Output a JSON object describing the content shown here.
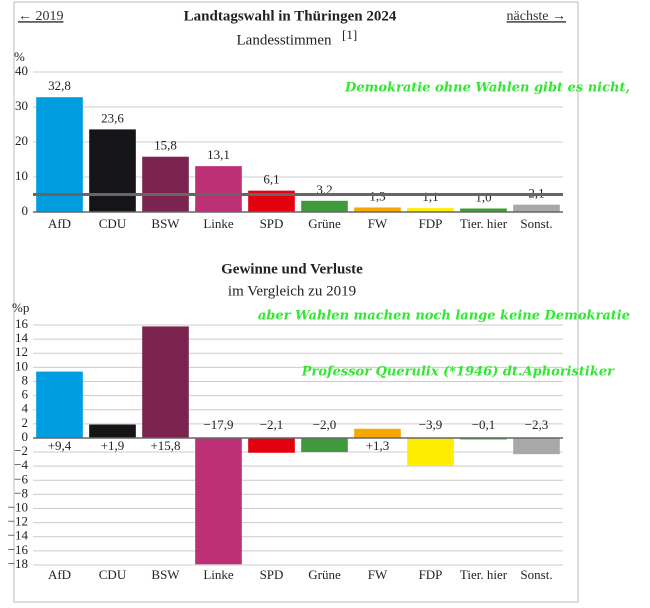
{
  "chart_data": [
    {
      "type": "bar",
      "title": "Landtagswahl in Thüringen 2024",
      "subtitle": "Landesstimmen",
      "subtitle_note": "[1]",
      "navigation": [
        "← 2019",
        "nächste →"
      ],
      "ylabel": "%",
      "categories": [
        "AfD",
        "CDU",
        "BSW",
        "Linke",
        "SPD",
        "Grüne",
        "FW",
        "FDP",
        "Tier. hier",
        "Sonst."
      ],
      "values": [
        32.8,
        23.6,
        15.8,
        13.1,
        6.1,
        3.2,
        1.3,
        1.1,
        1.0,
        2.1
      ],
      "value_labels": [
        "32,8",
        "23,6",
        "15,8",
        "13,1",
        "6,1",
        "3,2",
        "1,3",
        "1,1",
        "1,0",
        "2,1"
      ],
      "colors": [
        "#009ee0",
        "#151518",
        "#7b2450",
        "#be3075",
        "#e3000f",
        "#409a3c",
        "#f7a800",
        "#ffed00",
        "#3f9c35",
        "#a8a8a8"
      ],
      "ylim": [
        0,
        40
      ],
      "yticks": [
        0,
        10,
        20,
        30,
        40
      ],
      "grid": true,
      "threshold": 5,
      "annotations": [
        "Demokratie ohne Wahlen gibt es nicht,"
      ]
    },
    {
      "type": "bar",
      "title": "Gewinne und Verluste",
      "subtitle": "im Vergleich zu 2019",
      "ylabel": "%p",
      "categories": [
        "AfD",
        "CDU",
        "BSW",
        "Linke",
        "SPD",
        "Grüne",
        "FW",
        "FDP",
        "Tier. hier",
        "Sonst."
      ],
      "values": [
        9.4,
        1.9,
        15.8,
        -17.9,
        -2.1,
        -2.0,
        1.3,
        -3.9,
        -0.1,
        -2.3
      ],
      "value_labels": [
        "+9,4",
        "+1,9",
        "+15,8",
        "−17,9",
        "−2,1",
        "−2,0",
        "+1,3",
        "−3,9",
        "−0,1",
        "−2,3"
      ],
      "colors": [
        "#009ee0",
        "#151518",
        "#7b2450",
        "#be3075",
        "#e3000f",
        "#409a3c",
        "#f7a800",
        "#ffed00",
        "#3f9c35",
        "#a8a8a8"
      ],
      "ylim": [
        -18,
        16
      ],
      "yticks": [
        {
          "value": -18,
          "label": "−18"
        },
        {
          "value": -16,
          "label": "−16"
        },
        {
          "value": -14,
          "label": "−14"
        },
        {
          "value": -12,
          "label": "−12"
        },
        {
          "value": -10,
          "label": "−10"
        },
        {
          "value": -8,
          "label": "−8"
        },
        {
          "value": -6,
          "label": "−6"
        },
        {
          "value": -4,
          "label": "−4"
        },
        {
          "value": -2,
          "label": "−2"
        },
        0,
        2,
        4,
        6,
        8,
        10,
        12,
        14,
        16
      ],
      "grid": true,
      "annotations": [
        "aber Wahlen machen noch lange keine Demokratie",
        "Professor Querulix (*1946) dt.Aphoristiker"
      ]
    }
  ]
}
